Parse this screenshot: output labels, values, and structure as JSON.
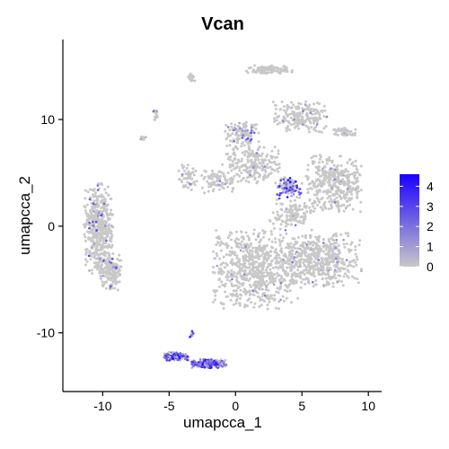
{
  "chart_data": {
    "type": "scatter",
    "title": "Vcan",
    "xlabel": "umapcca_1",
    "ylabel": "umapcca_2",
    "xlim": [
      -13,
      11
    ],
    "ylim": [
      -15.5,
      17.5
    ],
    "x_ticks": [
      -10,
      -5,
      0,
      5,
      10
    ],
    "x_tick_labels": [
      "-10",
      "-5",
      "0",
      "5",
      "10"
    ],
    "y_ticks": [
      -10,
      0,
      10
    ],
    "y_tick_labels": [
      "-10",
      "0",
      "10"
    ],
    "grid": false,
    "legend": {
      "placement": "right",
      "title": "",
      "min": 0,
      "max": 4.6,
      "ticks": [
        4,
        3,
        2,
        1,
        0
      ],
      "tick_labels": [
        "4",
        "3",
        "2",
        "1",
        "0"
      ],
      "low_color": "#c8c8c8",
      "high_color": "#1a00ff"
    },
    "clusters": [
      {
        "cx": 2.5,
        "cy": 14.7,
        "rx": 1.8,
        "ry": 0.4,
        "n": 100,
        "expr_frac": 0.0,
        "expr_max": 1
      },
      {
        "cx": -3.3,
        "cy": 13.9,
        "rx": 0.3,
        "ry": 0.5,
        "n": 20,
        "expr_frac": 0.1,
        "expr_max": 2
      },
      {
        "cx": 8.2,
        "cy": 8.8,
        "rx": 0.9,
        "ry": 0.4,
        "n": 45,
        "expr_frac": 0.05,
        "expr_max": 1
      },
      {
        "cx": -7.0,
        "cy": 8.2,
        "rx": 0.3,
        "ry": 0.3,
        "n": 10,
        "expr_frac": 0.05,
        "expr_max": 1
      },
      {
        "cx": 4.9,
        "cy": 10.3,
        "rx": 2.2,
        "ry": 1.5,
        "n": 200,
        "expr_frac": 0.03,
        "expr_max": 2
      },
      {
        "cx": 0.4,
        "cy": 8.6,
        "rx": 1.4,
        "ry": 1.2,
        "n": 120,
        "expr_frac": 0.15,
        "expr_max": 3
      },
      {
        "cx": 1.2,
        "cy": 5.8,
        "rx": 2.2,
        "ry": 1.8,
        "n": 220,
        "expr_frac": 0.04,
        "expr_max": 2
      },
      {
        "cx": -1.3,
        "cy": 4.2,
        "rx": 1.3,
        "ry": 1.1,
        "n": 90,
        "expr_frac": 0.04,
        "expr_max": 2
      },
      {
        "cx": 4.0,
        "cy": 3.6,
        "rx": 1.0,
        "ry": 1.0,
        "n": 110,
        "expr_frac": 0.45,
        "expr_max": 4.5
      },
      {
        "cx": 7.4,
        "cy": 4.0,
        "rx": 2.1,
        "ry": 2.7,
        "n": 380,
        "expr_frac": 0.02,
        "expr_max": 2
      },
      {
        "cx": 1.6,
        "cy": -4.0,
        "rx": 3.3,
        "ry": 3.8,
        "n": 700,
        "expr_frac": 0.02,
        "expr_max": 2
      },
      {
        "cx": 6.4,
        "cy": -3.2,
        "rx": 3.1,
        "ry": 2.6,
        "n": 500,
        "expr_frac": 0.02,
        "expr_max": 2
      },
      {
        "cx": 4.2,
        "cy": 1.0,
        "rx": 1.7,
        "ry": 1.5,
        "n": 120,
        "expr_frac": 0.03,
        "expr_max": 2
      },
      {
        "cx": -3.6,
        "cy": 4.5,
        "rx": 0.7,
        "ry": 1.3,
        "n": 50,
        "expr_frac": 0.08,
        "expr_max": 2
      },
      {
        "cx": -6.0,
        "cy": 10.4,
        "rx": 0.2,
        "ry": 0.6,
        "n": 15,
        "expr_frac": 0.1,
        "expr_max": 2
      },
      {
        "cx": -10.3,
        "cy": -0.2,
        "rx": 1.1,
        "ry": 4.3,
        "n": 500,
        "expr_frac": 0.07,
        "expr_max": 3.5
      },
      {
        "cx": -9.4,
        "cy": -4.3,
        "rx": 0.8,
        "ry": 1.8,
        "n": 150,
        "expr_frac": 0.06,
        "expr_max": 3
      },
      {
        "cx": -4.5,
        "cy": -12.2,
        "rx": 1.0,
        "ry": 0.4,
        "n": 150,
        "expr_frac": 0.75,
        "expr_max": 4.6
      },
      {
        "cx": -2.0,
        "cy": -12.9,
        "rx": 1.3,
        "ry": 0.45,
        "n": 180,
        "expr_frac": 0.75,
        "expr_max": 4.6
      },
      {
        "cx": -3.3,
        "cy": -10.1,
        "rx": 0.15,
        "ry": 0.3,
        "n": 10,
        "expr_frac": 0.6,
        "expr_max": 4
      }
    ]
  }
}
